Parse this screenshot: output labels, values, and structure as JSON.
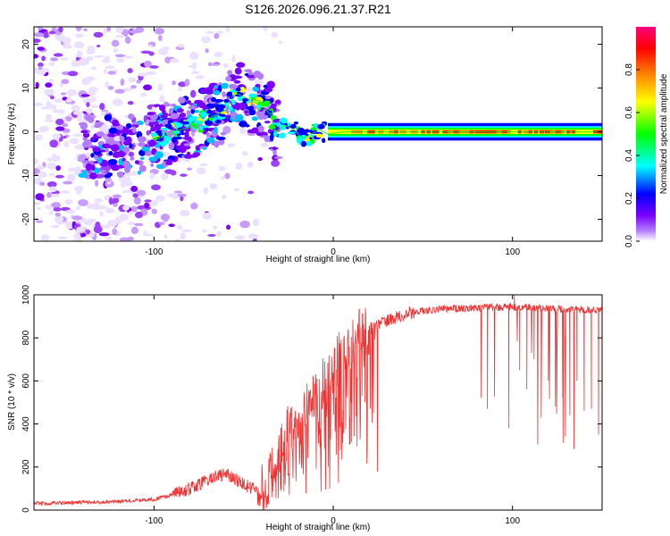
{
  "chart_data": [
    {
      "type": "heatmap",
      "title": "S126.2026.096.21.37.R21",
      "xlabel": "Height of straight line (km)",
      "ylabel": "Frequency (Hz)",
      "xlim": [
        -167,
        150
      ],
      "ylim": [
        -25,
        24
      ],
      "xticks": [
        -100,
        0,
        100
      ],
      "yticks": [
        -20,
        -10,
        0,
        10,
        20
      ],
      "xtick_labels": [
        "-100",
        "0",
        "100"
      ],
      "ytick_labels": [
        "-20",
        "-10",
        "0",
        "10",
        "20"
      ],
      "ridge": [
        {
          "x": -100,
          "y": -2
        },
        {
          "x": -90,
          "y": 0
        },
        {
          "x": -80,
          "y": 1
        },
        {
          "x": -70,
          "y": 3
        },
        {
          "x": -60,
          "y": 5
        },
        {
          "x": -55,
          "y": 9
        },
        {
          "x": -50,
          "y": 8
        },
        {
          "x": -45,
          "y": 7
        },
        {
          "x": -40,
          "y": 6
        },
        {
          "x": -35,
          "y": 4
        },
        {
          "x": -32,
          "y": 0
        },
        {
          "x": -27,
          "y": 1.5
        },
        {
          "x": -22,
          "y": 0.5
        },
        {
          "x": -17,
          "y": -1.5
        },
        {
          "x": -12,
          "y": -0.5
        },
        {
          "x": -8,
          "y": 0.5
        },
        {
          "x": -3,
          "y": -0.5
        },
        {
          "x": 5,
          "y": 0
        },
        {
          "x": 150,
          "y": 0
        }
      ],
      "colorbar": {
        "label": "Normalized spectral amplitude",
        "range": [
          0,
          1
        ],
        "ticks": [
          0.0,
          0.2,
          0.4,
          0.6,
          0.8
        ],
        "tick_labels": [
          "0.0",
          "0.2",
          "0.4",
          "0.6",
          "0.8"
        ],
        "colors": [
          "#ffffff",
          "#b27cff",
          "#7a00ff",
          "#0000ff",
          "#00ffff",
          "#00ff00",
          "#ffff00",
          "#ff8000",
          "#ff0000",
          "#ff0080"
        ]
      }
    },
    {
      "type": "line",
      "xlabel": "Height of straight line (km)",
      "ylabel": "SNR (10 * v/v)",
      "xlim": [
        -167,
        150
      ],
      "ylim": [
        0,
        1000
      ],
      "xticks": [
        -100,
        0,
        100
      ],
      "yticks": [
        0,
        200,
        400,
        600,
        800,
        1000
      ],
      "xtick_labels": [
        "-100",
        "0",
        "100"
      ],
      "ytick_labels": [
        "0",
        "200",
        "400",
        "600",
        "800",
        "1000"
      ],
      "series": [
        {
          "name": "SNR",
          "color": "#ee3333",
          "trend": [
            [
              -167,
              30
            ],
            [
              -120,
              40
            ],
            [
              -100,
              50
            ],
            [
              -90,
              70
            ],
            [
              -80,
              100
            ],
            [
              -70,
              140
            ],
            [
              -60,
              170
            ],
            [
              -50,
              120
            ],
            [
              -40,
              80
            ],
            [
              -35,
              150
            ],
            [
              -30,
              300
            ],
            [
              -20,
              450
            ],
            [
              -10,
              520
            ],
            [
              0,
              680
            ],
            [
              10,
              780
            ],
            [
              20,
              840
            ],
            [
              30,
              880
            ],
            [
              40,
              910
            ],
            [
              50,
              925
            ],
            [
              60,
              935
            ],
            [
              80,
              940
            ],
            [
              100,
              945
            ],
            [
              120,
              935
            ],
            [
              150,
              930
            ]
          ],
          "spikes": [
            {
              "x": 86,
              "y": 470
            },
            {
              "x": 98,
              "y": 380
            },
            {
              "x": 101,
              "y": 1000
            },
            {
              "x": 104,
              "y": 650
            },
            {
              "x": 108,
              "y": 560
            },
            {
              "x": 112,
              "y": 700
            },
            {
              "x": 116,
              "y": 430
            },
            {
              "x": 120,
              "y": 600
            },
            {
              "x": 124,
              "y": 480
            },
            {
              "x": 128,
              "y": 520
            },
            {
              "x": 132,
              "y": 440
            },
            {
              "x": 136,
              "y": 600
            },
            {
              "x": 140,
              "y": 460
            },
            {
              "x": 144,
              "y": 470
            },
            {
              "x": 148,
              "y": 350
            }
          ]
        }
      ]
    }
  ]
}
